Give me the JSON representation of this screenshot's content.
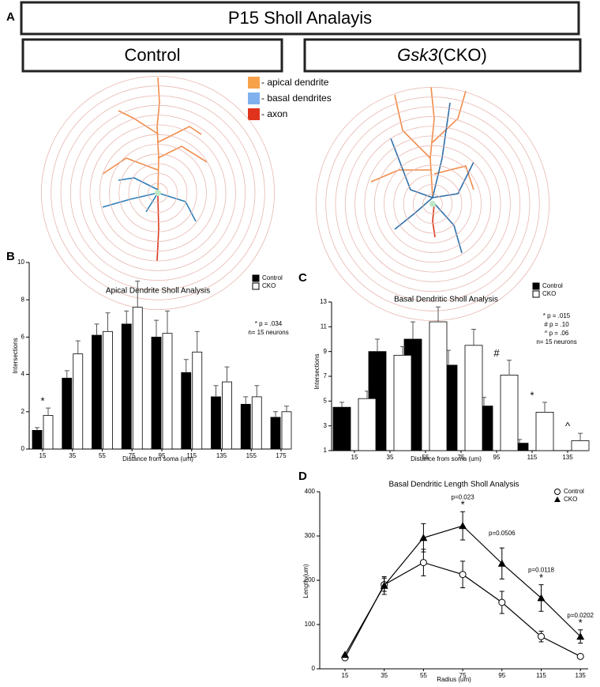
{
  "panel_a": {
    "label": "A",
    "title": "P15 Sholl Analayis",
    "left_title": "Control",
    "right_title_italic": "Gsk3",
    "right_title_rest": "(CKO)",
    "legend": [
      "- apical dendrite",
      "- basal dendrites",
      "- axon"
    ]
  },
  "chart_data": [
    {
      "type": "bar",
      "panel": "B",
      "title": "Apical Dendrite Sholl Analysis",
      "x_label": "Distance from soma (um)",
      "y_label": "Intersections",
      "categories": [
        "15",
        "35",
        "55",
        "75",
        "95",
        "115",
        "135",
        "155",
        "175"
      ],
      "series": [
        {
          "name": "Control",
          "color": "#000000",
          "values": [
            1.0,
            3.8,
            6.1,
            6.7,
            6.0,
            4.1,
            2.8,
            2.4,
            1.7
          ],
          "errors": [
            0.15,
            0.4,
            0.6,
            0.7,
            0.9,
            0.7,
            0.6,
            0.4,
            0.3
          ]
        },
        {
          "name": "CKO",
          "color": "#ffffff",
          "values": [
            1.8,
            5.1,
            6.3,
            7.6,
            6.2,
            5.2,
            3.6,
            2.8,
            2.0
          ],
          "errors": [
            0.4,
            0.7,
            1.0,
            1.4,
            1.2,
            1.1,
            0.8,
            0.6,
            0.3
          ]
        }
      ],
      "significance": [
        "*",
        null,
        null,
        null,
        null,
        null,
        null,
        null,
        null
      ],
      "notes": [
        "* p = .034",
        "n= 15 neurons"
      ],
      "ylim": [
        0,
        10
      ],
      "yticks": [
        0,
        2,
        4,
        6,
        8,
        10
      ]
    },
    {
      "type": "bar",
      "panel": "C",
      "title": "Basal Dendritic Sholl Analysis",
      "x_label": "Distance from soma (um)",
      "y_label": "Intersections",
      "categories": [
        "15",
        "35",
        "55",
        "75",
        "95",
        "115",
        "135"
      ],
      "series": [
        {
          "name": "Control",
          "color": "#000000",
          "values": [
            4.5,
            9.0,
            10.0,
            7.9,
            4.6,
            1.6,
            null
          ],
          "errors": [
            0.4,
            1.0,
            1.4,
            1.2,
            0.7,
            0.3,
            null
          ]
        },
        {
          "name": "CKO",
          "color": "#ffffff",
          "values": [
            5.2,
            8.7,
            11.4,
            9.5,
            7.1,
            4.1,
            1.8
          ],
          "errors": [
            0.6,
            0.7,
            1.2,
            1.3,
            1.2,
            0.8,
            0.6
          ]
        }
      ],
      "significance": [
        null,
        null,
        null,
        null,
        "#",
        "*",
        "^"
      ],
      "notes": [
        "* p = .015",
        "# p = .10",
        "^ p = .06",
        "n= 15 neurons"
      ],
      "ylim": [
        1,
        13
      ],
      "yticks": [
        1,
        3,
        5,
        7,
        9,
        11,
        13
      ]
    },
    {
      "type": "line",
      "panel": "D",
      "title": "Basal Dendritic Length Sholl Analysis",
      "x_label": "Radius (um)",
      "y_label": "Length (um)",
      "categories": [
        "15",
        "35",
        "55",
        "75",
        "95",
        "115",
        "135"
      ],
      "series": [
        {
          "name": "Control",
          "color": "#000000",
          "marker": "circle",
          "values": [
            25,
            190,
            240,
            213,
            150,
            73,
            28
          ],
          "errors": [
            0,
            15,
            30,
            30,
            25,
            12,
            3
          ]
        },
        {
          "name": "CKO",
          "color": "#000000",
          "marker": "triangle",
          "values": [
            32,
            188,
            296,
            323,
            238,
            160,
            73
          ],
          "errors": [
            0,
            20,
            32,
            32,
            35,
            30,
            15
          ]
        }
      ],
      "p_labels": [
        null,
        null,
        null,
        "p=0.023",
        "p=0.0506",
        "p=0.0118",
        "p=0.0202"
      ],
      "significance": [
        null,
        null,
        null,
        "*",
        null,
        "*",
        "*"
      ],
      "ylim": [
        0,
        400
      ],
      "yticks": [
        0,
        100,
        200,
        300,
        400
      ]
    }
  ]
}
